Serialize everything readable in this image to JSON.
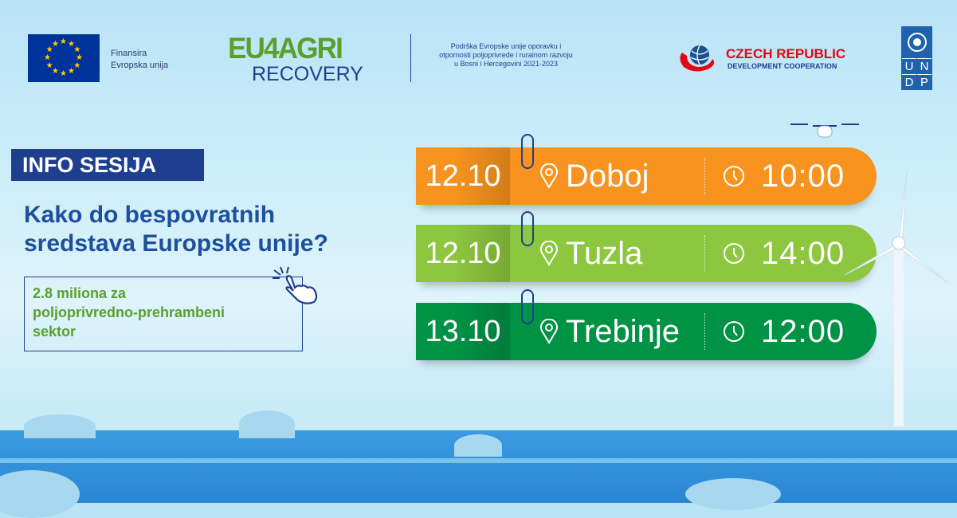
{
  "header": {
    "eu_text": [
      "Finansira",
      "Evropska unija"
    ],
    "eu4agri": "EU4AGRI",
    "recovery": "RECOVERY",
    "support_text": [
      "Podrška Evropske unije oporavku i",
      "otpornosti poljoprivrede i ruralnom razvoju",
      "u Bosni i Hercegovini 2021-2023"
    ],
    "czech_line1": "CZECH REPUBLIC",
    "czech_line2": "DEVELOPMENT COOPERATION",
    "undp_letters": [
      "U",
      "N",
      "D",
      "P"
    ]
  },
  "main": {
    "badge": "INFO SESIJA",
    "heading": [
      "Kako do bespovratnih",
      "sredstava Europske unije?"
    ],
    "subtext": [
      "2.8 miliona za",
      "poljoprivredno-prehrambeni",
      "sektor"
    ]
  },
  "sessions": [
    {
      "date": "12.10",
      "city": "Doboj",
      "time": "10:00",
      "color": "#f7931e"
    },
    {
      "date": "12.10",
      "city": "Tuzla",
      "time": "14:00",
      "color": "#8dc63f"
    },
    {
      "date": "13.10",
      "city": "Trebinje",
      "time": "12:00",
      "color": "#009245"
    }
  ],
  "colors": {
    "navy": "#1e3f8f",
    "heading_blue": "#1d4f9c",
    "green_text": "#5aa02c",
    "czech_red": "#e30613",
    "undp_blue": "#1f63ae"
  }
}
